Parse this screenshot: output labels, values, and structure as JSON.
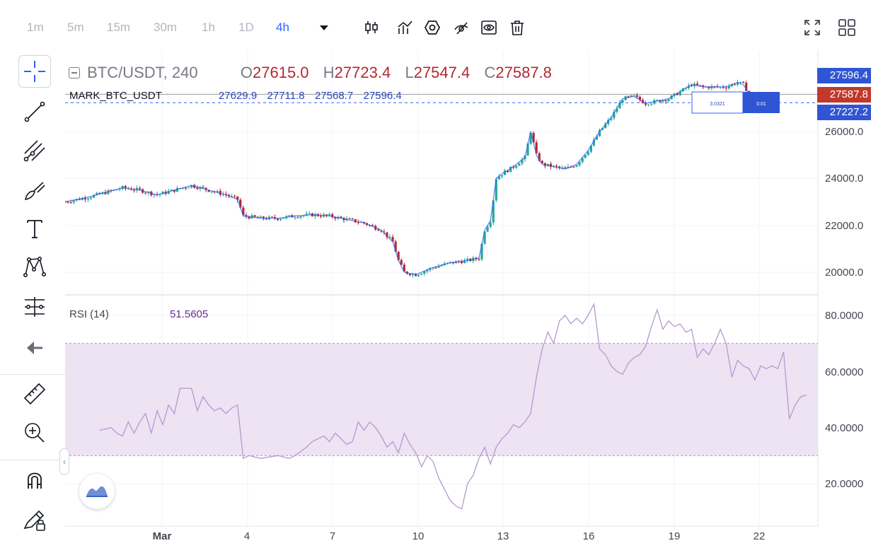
{
  "toolbar": {
    "timeframes": [
      "1m",
      "5m",
      "15m",
      "30m",
      "1h",
      "1D",
      "4h"
    ],
    "active_timeframe": "4h",
    "dropdown_icon": "caret-down-icon",
    "tools": [
      "candles-icon",
      "indicators-icon",
      "settings-hex-icon",
      "draw-hide-icon",
      "eye-icon",
      "trash-icon"
    ],
    "right_tools": [
      "fullscreen-icon",
      "layout-grid-icon"
    ]
  },
  "left_toolbar": {
    "tools": [
      "crosshair-icon",
      "trendline-icon",
      "fib-icon",
      "brush-icon",
      "text-icon",
      "pattern-icon",
      "measure-prediction-icon",
      "back-arrow-icon",
      "ruler-icon",
      "zoom-in-icon",
      "magnet-icon",
      "lock-drawing-icon"
    ]
  },
  "legend": {
    "symbol": "BTC/USDT, 240",
    "o_label": "O",
    "o_value": "27615.0",
    "h_label": "H",
    "h_value": "27723.4",
    "l_label": "L",
    "l_value": "27547.4",
    "c_label": "C",
    "c_value": "27587.8"
  },
  "mark": {
    "name": "MARK_BTC_USDT",
    "v1": "27629.9",
    "v2": "27711.8",
    "v3": "27568.7",
    "v4": "27596.4"
  },
  "price_tags": [
    "27596.4",
    "27587.8",
    "27227.2"
  ],
  "colors": {
    "up": "#26a69a",
    "down": "#b22833",
    "blue_line": "#2962ff",
    "rsi_line": "#b698d0",
    "rsi_band": "#ede3f3",
    "tag_blue": "#2f55d4",
    "tag_red": "#c0392b"
  },
  "overlay_box": {
    "left_text": "3.0321",
    "right_text": "0.01"
  },
  "rsi": {
    "label": "RSI (14)",
    "value": "51.5605"
  },
  "chart_data": [
    {
      "type": "candlestick",
      "title": "BTC/USDT, 240",
      "x_tick_labels": [
        "Mar",
        "4",
        "7",
        "10",
        "13",
        "16",
        "19",
        "22"
      ],
      "y_tick_labels": [
        "26000.0",
        "24000.0",
        "22000.0",
        "20000.0"
      ],
      "ylim": [
        19400,
        28500
      ],
      "close_path": [
        [
          0,
          23000
        ],
        [
          4,
          23200
        ],
        [
          7,
          23400
        ],
        [
          10,
          23600
        ],
        [
          13,
          23500
        ],
        [
          16,
          23300
        ],
        [
          19,
          23500
        ],
        [
          22,
          23700
        ],
        [
          25,
          23500
        ],
        [
          28,
          23300
        ],
        [
          30,
          23100
        ],
        [
          31,
          22400
        ],
        [
          34,
          22300
        ],
        [
          37,
          22300
        ],
        [
          40,
          22400
        ],
        [
          43,
          22450
        ],
        [
          46,
          22400
        ],
        [
          49,
          22250
        ],
        [
          52,
          22100
        ],
        [
          55,
          21800
        ],
        [
          57,
          21300
        ],
        [
          58,
          20500
        ],
        [
          59,
          20000
        ],
        [
          61,
          19900
        ],
        [
          64,
          20200
        ],
        [
          67,
          20400
        ],
        [
          70,
          20500
        ],
        [
          72,
          20600
        ],
        [
          73,
          21800
        ],
        [
          74,
          22200
        ],
        [
          75,
          24000
        ],
        [
          76,
          24200
        ],
        [
          78,
          24500
        ],
        [
          80,
          24900
        ],
        [
          81,
          26000
        ],
        [
          82,
          25000
        ],
        [
          83,
          24600
        ],
        [
          85,
          24500
        ],
        [
          87,
          24400
        ],
        [
          89,
          24600
        ],
        [
          91,
          25200
        ],
        [
          93,
          26000
        ],
        [
          95,
          26600
        ],
        [
          97,
          27400
        ],
        [
          99,
          27500
        ],
        [
          101,
          27200
        ],
        [
          103,
          27300
        ],
        [
          105,
          27400
        ],
        [
          107,
          27700
        ],
        [
          109,
          28000
        ],
        [
          111,
          27900
        ],
        [
          113,
          27900
        ],
        [
          115,
          27900
        ],
        [
          117,
          28100
        ],
        [
          118,
          28000
        ],
        [
          119,
          27600
        ],
        [
          120,
          27300
        ],
        [
          121,
          27400
        ],
        [
          123,
          27590
        ]
      ],
      "current_price": 27587.8
    },
    {
      "type": "line",
      "title": "RSI (14)",
      "y_tick_labels": [
        "80.0000",
        "60.0000",
        "40.0000",
        "20.0000"
      ],
      "ylim": [
        15,
        85
      ],
      "band": [
        30,
        70
      ],
      "series": [
        {
          "name": "RSI (14)",
          "values": [
            [
              6,
              39
            ],
            [
              8,
              40
            ],
            [
              9,
              38
            ],
            [
              10,
              37
            ],
            [
              11,
              42
            ],
            [
              12,
              38
            ],
            [
              13,
              42
            ],
            [
              14,
              45
            ],
            [
              15,
              38
            ],
            [
              16,
              46
            ],
            [
              17,
              41
            ],
            [
              18,
              48
            ],
            [
              19,
              45
            ],
            [
              20,
              54
            ],
            [
              22,
              54
            ],
            [
              23,
              46
            ],
            [
              24,
              51
            ],
            [
              25,
              48
            ],
            [
              26,
              46
            ],
            [
              27,
              47
            ],
            [
              28,
              45
            ],
            [
              29,
              47
            ],
            [
              30,
              48
            ],
            [
              31,
              29
            ],
            [
              32,
              30
            ],
            [
              34,
              29
            ],
            [
              37,
              30
            ],
            [
              39,
              29
            ],
            [
              40,
              30
            ],
            [
              42,
              33
            ],
            [
              43,
              35
            ],
            [
              45,
              37
            ],
            [
              46,
              35
            ],
            [
              47,
              38
            ],
            [
              48,
              36
            ],
            [
              49,
              34
            ],
            [
              50,
              35
            ],
            [
              51,
              42
            ],
            [
              52,
              39
            ],
            [
              53,
              42
            ],
            [
              54,
              40
            ],
            [
              55,
              37
            ],
            [
              56,
              33
            ],
            [
              57,
              35
            ],
            [
              58,
              31
            ],
            [
              59,
              38
            ],
            [
              60,
              34
            ],
            [
              61,
              31
            ],
            [
              62,
              26
            ],
            [
              63,
              30
            ],
            [
              64,
              28
            ],
            [
              65,
              22
            ],
            [
              66,
              18
            ],
            [
              67,
              14
            ],
            [
              68,
              12
            ],
            [
              69,
              11
            ],
            [
              70,
              20
            ],
            [
              71,
              23
            ],
            [
              72,
              29
            ],
            [
              73,
              33
            ],
            [
              74,
              27
            ],
            [
              75,
              33
            ],
            [
              76,
              36
            ],
            [
              77,
              38
            ],
            [
              78,
              41
            ],
            [
              79,
              40
            ],
            [
              80,
              42
            ],
            [
              81,
              45
            ],
            [
              82,
              58
            ],
            [
              83,
              68
            ],
            [
              84,
              74
            ],
            [
              85,
              70
            ],
            [
              86,
              78
            ],
            [
              87,
              80
            ],
            [
              88,
              77
            ],
            [
              89,
              79
            ],
            [
              90,
              77
            ],
            [
              91,
              80
            ],
            [
              92,
              84
            ],
            [
              93,
              68
            ],
            [
              94,
              66
            ],
            [
              95,
              62
            ],
            [
              96,
              60
            ],
            [
              97,
              59
            ],
            [
              98,
              63
            ],
            [
              99,
              65
            ],
            [
              100,
              66
            ],
            [
              101,
              69
            ],
            [
              102,
              76
            ],
            [
              103,
              82
            ],
            [
              104,
              75
            ],
            [
              105,
              78
            ],
            [
              106,
              76
            ],
            [
              107,
              77
            ],
            [
              108,
              74
            ],
            [
              109,
              75
            ],
            [
              110,
              65
            ],
            [
              111,
              68
            ],
            [
              112,
              66
            ],
            [
              113,
              70
            ],
            [
              114,
              75
            ],
            [
              115,
              70
            ],
            [
              116,
              58
            ],
            [
              117,
              64
            ],
            [
              118,
              62
            ],
            [
              119,
              61
            ],
            [
              120,
              57
            ],
            [
              121,
              62
            ],
            [
              122,
              61
            ],
            [
              123,
              62
            ],
            [
              124,
              61
            ],
            [
              125,
              67
            ],
            [
              126,
              43
            ],
            [
              127,
              48
            ],
            [
              128,
              51
            ],
            [
              129,
              51.5605
            ]
          ]
        }
      ]
    }
  ]
}
